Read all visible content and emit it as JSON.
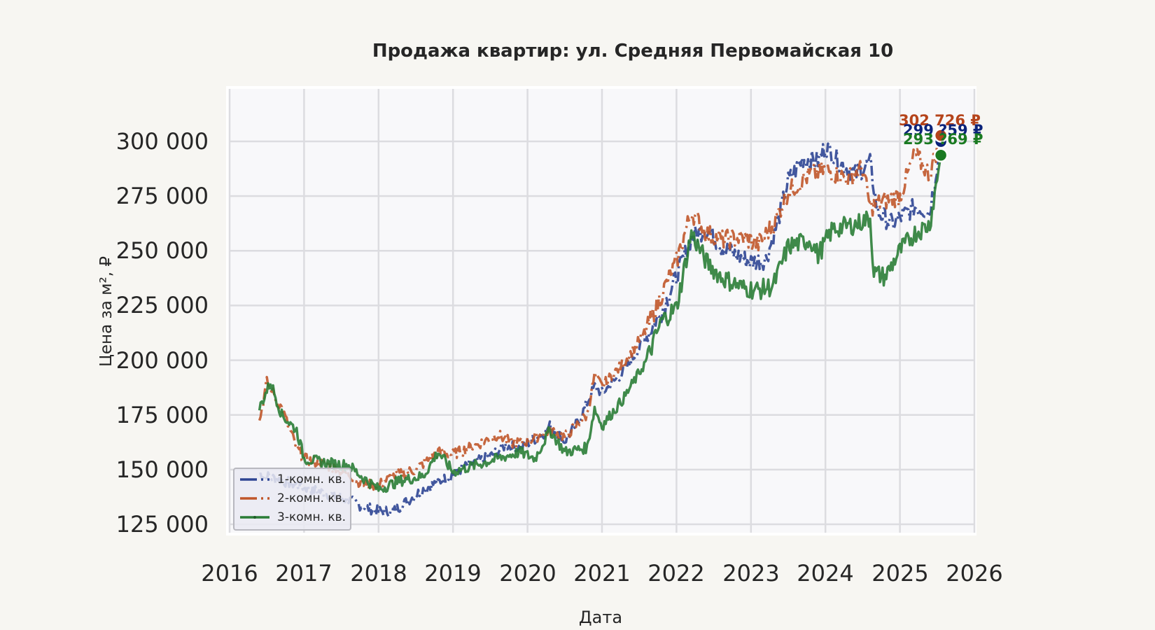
{
  "title": "Продажа квартир: ул. Средняя Первомайская 10",
  "xlabel": "Дата",
  "ylabel": "Цена за м², ₽",
  "yticks": [
    "300 000",
    "275 000",
    "250 000",
    "225 000",
    "200 000",
    "175 000",
    "150 000",
    "125 000"
  ],
  "xticks": [
    "2016",
    "2017",
    "2018",
    "2019",
    "2020",
    "2021",
    "2022",
    "2023",
    "2024",
    "2025",
    "2026"
  ],
  "legend": [
    {
      "label": "1-комн. кв.",
      "color": "#2e4593",
      "dash": "14 5 3 5"
    },
    {
      "label": "2-комн. кв.",
      "color": "#c0562a",
      "dash": "16 6 3 6"
    },
    {
      "label": "3-комн. кв.",
      "color": "#2a7d36",
      "dash": ""
    }
  ],
  "end_labels": [
    {
      "text": "302 726 ₽",
      "color": "#b5441b"
    },
    {
      "text": "299 ?59 ₽",
      "color": "#0b237a"
    },
    {
      "text": "293 ?69 ₽",
      "color": "#1a7a22"
    }
  ],
  "chart_data": {
    "type": "line",
    "title": "Продажа квартир: ул. Средняя Первомайская 10",
    "xlabel": "Дата",
    "ylabel": "Цена за м², ₽",
    "xlim": [
      2016,
      2026
    ],
    "ylim": [
      120000,
      320000
    ],
    "grid": true,
    "legend_position": "lower left",
    "series": [
      {
        "name": "1-комн. кв.",
        "color": "#2e4593",
        "x": [
          2016.4,
          2016.7,
          2017.0,
          2017.3,
          2017.6,
          2017.8,
          2018.0,
          2018.2,
          2018.4,
          2018.6,
          2018.9,
          2019.2,
          2019.5,
          2019.7,
          2019.9,
          2020.2,
          2020.3,
          2020.5,
          2020.7,
          2020.9,
          2021.0,
          2021.3,
          2021.6,
          2021.8,
          2022.0,
          2022.2,
          2022.4,
          2022.6,
          2022.8,
          2023.0,
          2023.2,
          2023.35,
          2023.5,
          2023.7,
          2023.9,
          2024.0,
          2024.2,
          2024.4,
          2024.6,
          2024.7,
          2024.9,
          2025.0,
          2025.2,
          2025.4,
          2025.55
        ],
        "values": [
          148000,
          145000,
          142000,
          139000,
          136000,
          133000,
          131000,
          131000,
          136000,
          141000,
          146000,
          152000,
          156000,
          161000,
          160000,
          166000,
          170000,
          163000,
          173000,
          188000,
          185000,
          195000,
          211000,
          222000,
          238000,
          256000,
          260000,
          252000,
          248000,
          245000,
          246000,
          262000,
          282000,
          292000,
          291000,
          298000,
          290000,
          285000,
          290000,
          268000,
          262000,
          265000,
          270000,
          268000,
          299959
        ]
      },
      {
        "name": "2-комн. кв.",
        "color": "#c0562a",
        "x": [
          2016.4,
          2016.5,
          2016.7,
          2016.9,
          2017.0,
          2017.3,
          2017.6,
          2017.8,
          2018.0,
          2018.2,
          2018.5,
          2018.8,
          2019.0,
          2019.3,
          2019.6,
          2019.8,
          2020.0,
          2020.3,
          2020.5,
          2020.8,
          2020.9,
          2021.0,
          2021.3,
          2021.6,
          2021.8,
          2022.0,
          2022.2,
          2022.4,
          2022.6,
          2022.9,
          2023.1,
          2023.3,
          2023.5,
          2023.8,
          2024.0,
          2024.3,
          2024.5,
          2024.6,
          2024.8,
          2025.0,
          2025.2,
          2025.4,
          2025.55
        ],
        "values": [
          172000,
          190000,
          178000,
          160000,
          155000,
          152000,
          148000,
          143000,
          143000,
          147000,
          150000,
          158000,
          157000,
          161000,
          166000,
          162000,
          163000,
          168000,
          165000,
          175000,
          193000,
          188000,
          199000,
          214000,
          230000,
          245000,
          268000,
          258000,
          255000,
          256000,
          253000,
          262000,
          277000,
          285000,
          287000,
          283000,
          288000,
          270000,
          273000,
          275000,
          294000,
          285000,
          302726
        ]
      },
      {
        "name": "3-комн. кв.",
        "color": "#2a7d36",
        "x": [
          2016.4,
          2016.55,
          2016.7,
          2016.9,
          2017.0,
          2017.3,
          2017.6,
          2017.8,
          2018.0,
          2018.3,
          2018.6,
          2018.8,
          2019.0,
          2019.3,
          2019.6,
          2019.9,
          2020.1,
          2020.3,
          2020.5,
          2020.8,
          2020.9,
          2021.0,
          2021.3,
          2021.6,
          2021.8,
          2022.0,
          2022.2,
          2022.4,
          2022.6,
          2022.9,
          2023.1,
          2023.3,
          2023.5,
          2023.8,
          2023.9,
          2024.1,
          2024.4,
          2024.6,
          2024.65,
          2024.8,
          2025.0,
          2025.2,
          2025.4,
          2025.55
        ],
        "values": [
          178000,
          190000,
          175000,
          168000,
          155000,
          153000,
          152000,
          146000,
          141000,
          145000,
          147000,
          158000,
          149000,
          152000,
          155000,
          158000,
          155000,
          168000,
          158000,
          160000,
          178000,
          170000,
          183000,
          200000,
          218000,
          224000,
          258000,
          245000,
          238000,
          233000,
          232000,
          234000,
          252000,
          255000,
          248000,
          260000,
          262000,
          265000,
          240000,
          238000,
          250000,
          258000,
          262000,
          293669
        ]
      }
    ],
    "end_markers": [
      {
        "series": "2-комн. кв.",
        "x": 2025.55,
        "value": 302726,
        "label": "302 726 ₽"
      },
      {
        "series": "1-комн. кв.",
        "x": 2025.55,
        "value": 299959,
        "label": "299 ?59 ₽"
      },
      {
        "series": "3-комн. кв.",
        "x": 2025.55,
        "value": 293669,
        "label": "293 ?69 ₽"
      }
    ]
  }
}
